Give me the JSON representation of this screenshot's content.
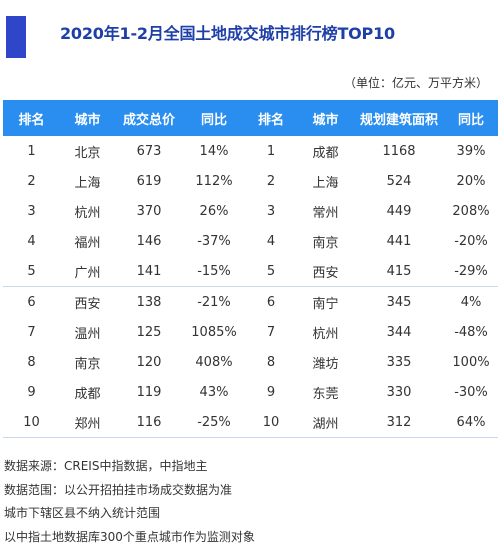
{
  "title": "2020年1-2月全国土地成交城市排行榜TOP10",
  "unit": "（单位：亿元、万平方米）",
  "colors": {
    "header_bg": "#2a8ef0",
    "title": "#1e3fa8",
    "logo_bar": "#2f46c8"
  },
  "table": {
    "headers": [
      "排名",
      "城市",
      "成交总价",
      "同比",
      "排名",
      "城市",
      "规划建筑面积",
      "同比"
    ],
    "rows": [
      [
        "1",
        "北京",
        "673",
        "14%",
        "1",
        "成都",
        "1168",
        "39%"
      ],
      [
        "2",
        "上海",
        "619",
        "112%",
        "2",
        "上海",
        "524",
        "20%"
      ],
      [
        "3",
        "杭州",
        "370",
        "26%",
        "3",
        "常州",
        "449",
        "208%"
      ],
      [
        "4",
        "福州",
        "146",
        "-37%",
        "4",
        "南京",
        "441",
        "-20%"
      ],
      [
        "5",
        "广州",
        "141",
        "-15%",
        "5",
        "西安",
        "415",
        "-29%"
      ],
      [
        "6",
        "西安",
        "138",
        "-21%",
        "6",
        "南宁",
        "345",
        "4%"
      ],
      [
        "7",
        "温州",
        "125",
        "1085%",
        "7",
        "杭州",
        "344",
        "-48%"
      ],
      [
        "8",
        "南京",
        "120",
        "408%",
        "8",
        "潍坊",
        "335",
        "100%"
      ],
      [
        "9",
        "成都",
        "119",
        "43%",
        "9",
        "东莞",
        "330",
        "-30%"
      ],
      [
        "10",
        "郑州",
        "116",
        "-25%",
        "10",
        "湖州",
        "312",
        "64%"
      ]
    ]
  },
  "notes": [
    "数据来源：CREIS中指数据，中指地主",
    "数据范围：以公开招拍挂市场成交数据为准",
    "城市下辖区县不纳入统计范围",
    "以中指土地数据库300个重点城市作为监测对象"
  ]
}
